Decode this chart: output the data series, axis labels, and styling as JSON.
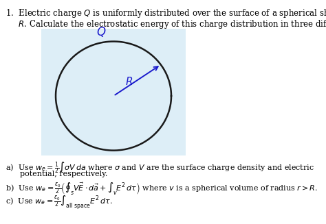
{
  "background_color": "#ffffff",
  "box_color": "#ddeef7",
  "circle_color": "#1a1a1a",
  "blue_color": "#1a1acc",
  "title_line1": "1.  Electric charge $Q$ is uniformly distributed over the surface of a spherical shell of radius",
  "title_line2": "     $R$. Calculate the electrostatic energy of this charge distribution in three different ways:",
  "line_a1": "a)  Use $w_e = \\frac{1}{2}\\int \\sigma V\\, da$ where $\\sigma$ and $V$ are the surface charge density and electric",
  "line_a2": "      potential, respectively.",
  "line_b": "b)  Use $w_e = \\frac{\\epsilon_0}{2}\\left(\\oint_s V\\vec{E}\\cdot d\\vec{a} + \\int_v E^2\\,d\\tau\\right)$ where $v$ is a spherical volume of radius $r > R$.",
  "line_c": "c)  Use $w_e = \\frac{\\epsilon_0}{2}\\int_{\\mathrm{all\\ space}} E^2\\,d\\tau$.",
  "font_size_title": 8.5,
  "font_size_text": 8.0,
  "circle_lw": 1.8,
  "arrow_lw": 1.4
}
